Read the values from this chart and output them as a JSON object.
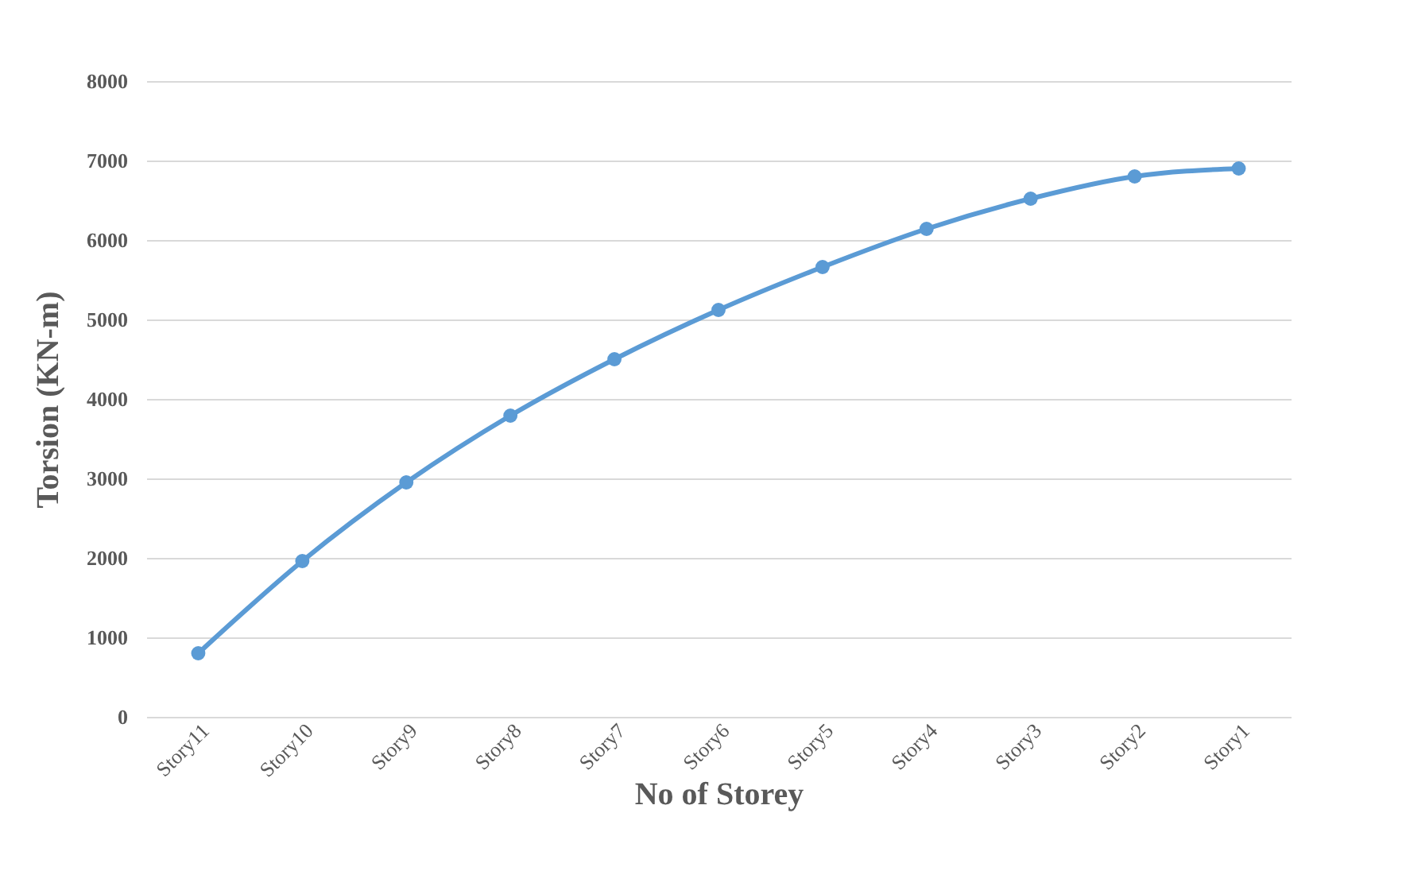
{
  "chart_data": {
    "type": "line",
    "xlabel": "No of Storey",
    "ylabel": "Torsion (KN-m)",
    "categories": [
      "Story11",
      "Story10",
      "Story9",
      "Story8",
      "Story7",
      "Story6",
      "Story5",
      "Story4",
      "Story3",
      "Story2",
      "Story1"
    ],
    "series": [
      {
        "color": "#5b9bd5",
        "values": [
          800,
          1960,
          2950,
          3790,
          4500,
          5120,
          5660,
          6140,
          6520,
          6800,
          6900
        ]
      }
    ],
    "ylim": [
      0,
      8000
    ],
    "yticks": [
      0,
      1000,
      2000,
      3000,
      4000,
      5000,
      6000,
      7000,
      8000
    ],
    "grid": "y",
    "marker": "circle",
    "legend": false
  }
}
